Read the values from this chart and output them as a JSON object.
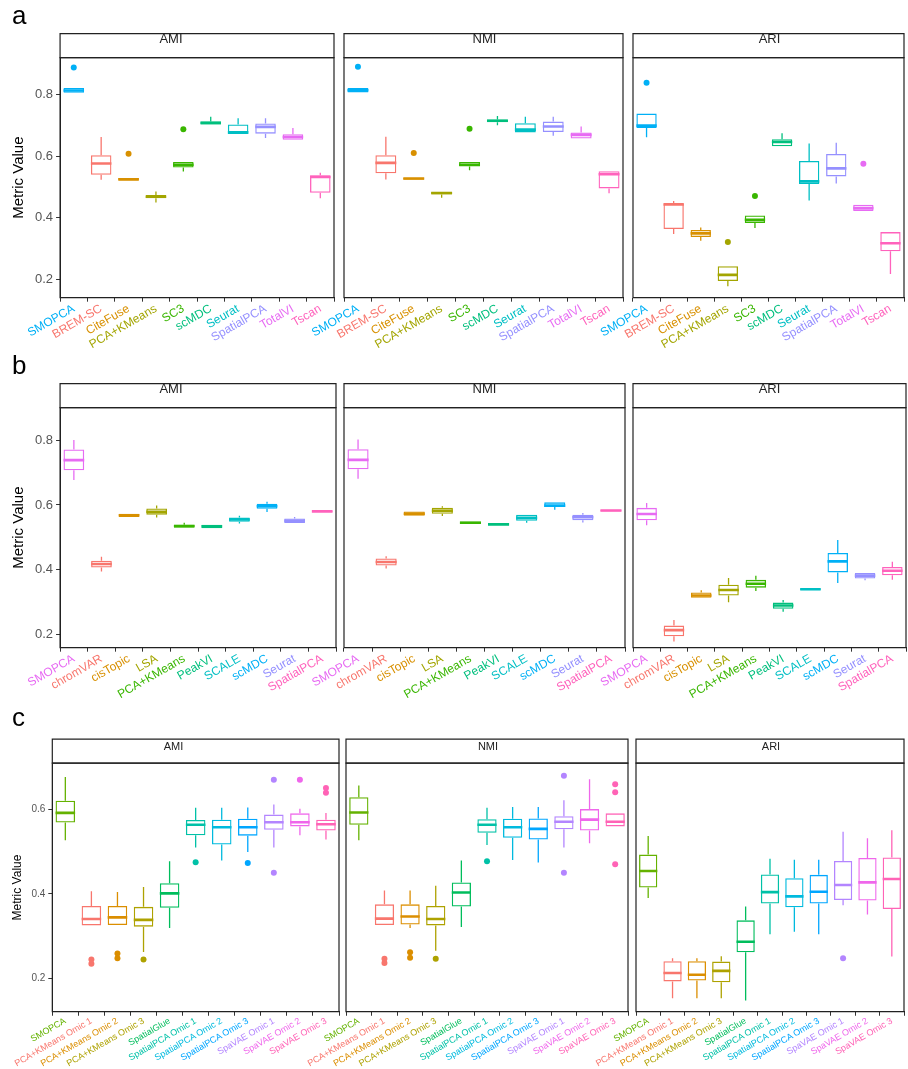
{
  "chart_data": [
    {
      "type": "box",
      "title": "AMI",
      "ylabel": "Metric Value",
      "annotations": [
        "a"
      ],
      "grid": false,
      "ylim": [
        0.14,
        0.92
      ],
      "yticks": [
        0.2,
        0.4,
        0.6,
        0.8
      ],
      "categories": [
        "SMOPCA",
        "BREM-SC",
        "CiteFuse",
        "PCA+KMeans",
        "SC3",
        "scMDC",
        "Seurat",
        "SpatialPCA",
        "TotalVI",
        "Tscan"
      ],
      "colors": [
        "#00b0f6",
        "#f8766d",
        "#d89000",
        "#a3a500",
        "#39b600",
        "#00bf7d",
        "#00bfc4",
        "#9590ff",
        "#e76bf3",
        "#ff62bc"
      ],
      "boxes": [
        {
          "low": 0.806,
          "q1": 0.806,
          "median": 0.813,
          "q3": 0.821,
          "high": 0.821,
          "outliers": [
            0.888
          ]
        },
        {
          "low": 0.523,
          "q1": 0.539,
          "median": 0.576,
          "q3": 0.603,
          "high": 0.662
        },
        {
          "low": 0.52,
          "q1": 0.52,
          "median": 0.525,
          "q3": 0.529,
          "high": 0.529,
          "outliers": [
            0.608
          ]
        },
        {
          "low": 0.449,
          "q1": 0.463,
          "median": 0.468,
          "q3": 0.474,
          "high": 0.485
        },
        {
          "low": 0.55,
          "q1": 0.563,
          "median": 0.572,
          "q3": 0.581,
          "high": 0.581,
          "outliers": [
            0.687
          ]
        },
        {
          "low": 0.703,
          "q1": 0.703,
          "median": 0.708,
          "q3": 0.712,
          "high": 0.728
        },
        {
          "low": 0.672,
          "q1": 0.672,
          "median": 0.677,
          "q3": 0.703,
          "high": 0.723
        },
        {
          "low": 0.659,
          "q1": 0.673,
          "median": 0.695,
          "q3": 0.706,
          "high": 0.723
        },
        {
          "low": 0.653,
          "q1": 0.653,
          "median": 0.662,
          "q3": 0.671,
          "high": 0.691
        },
        {
          "low": 0.463,
          "q1": 0.481,
          "median": 0.532,
          "q3": 0.538,
          "high": 0.546
        }
      ]
    },
    {
      "type": "box",
      "title": "NMI",
      "tick_labels": "x",
      "grid": false,
      "ylim": [
        0.14,
        0.92
      ],
      "yticks": [
        0.2,
        0.4,
        0.6,
        0.8
      ],
      "categories": [
        "SMOPCA",
        "BREM-SC",
        "CiteFuse",
        "PCA+KMeans",
        "SC3",
        "scMDC",
        "Seurat",
        "SpatialPCA",
        "TotalVI",
        "Tscan"
      ],
      "colors": [
        "#00b0f6",
        "#f8766d",
        "#d89000",
        "#a3a500",
        "#39b600",
        "#00bf7d",
        "#00bfc4",
        "#9590ff",
        "#e76bf3",
        "#ff62bc"
      ],
      "boxes": [
        {
          "low": 0.807,
          "q1": 0.807,
          "median": 0.814,
          "q3": 0.821,
          "high": 0.821,
          "outliers": [
            0.89
          ]
        },
        {
          "low": 0.524,
          "q1": 0.544,
          "median": 0.578,
          "q3": 0.603,
          "high": 0.663
        },
        {
          "low": 0.523,
          "q1": 0.523,
          "median": 0.527,
          "q3": 0.53,
          "high": 0.53,
          "outliers": [
            0.61
          ]
        },
        {
          "low": 0.465,
          "q1": 0.475,
          "median": 0.48,
          "q3": 0.483,
          "high": 0.483
        },
        {
          "low": 0.554,
          "q1": 0.566,
          "median": 0.572,
          "q3": 0.581,
          "high": 0.581,
          "outliers": [
            0.689
          ]
        },
        {
          "low": 0.7,
          "q1": 0.71,
          "median": 0.715,
          "q3": 0.719,
          "high": 0.73
        },
        {
          "low": 0.677,
          "q1": 0.677,
          "median": 0.686,
          "q3": 0.707,
          "high": 0.728
        },
        {
          "low": 0.666,
          "q1": 0.678,
          "median": 0.696,
          "q3": 0.712,
          "high": 0.728
        },
        {
          "low": 0.657,
          "q1": 0.657,
          "median": 0.669,
          "q3": 0.677,
          "high": 0.696
        },
        {
          "low": 0.479,
          "q1": 0.495,
          "median": 0.541,
          "q3": 0.551,
          "high": 0.551
        }
      ]
    },
    {
      "type": "box",
      "title": "ARI",
      "tick_labels": "x",
      "grid": false,
      "ylim": [
        0.14,
        0.92
      ],
      "yticks": [
        0.2,
        0.4,
        0.6,
        0.8
      ],
      "categories": [
        "SMOPCA",
        "BREM-SC",
        "CiteFuse",
        "PCA+KMeans",
        "SC3",
        "scMDC",
        "Seurat",
        "SpatialPCA",
        "TotalVI",
        "Tscan"
      ],
      "colors": [
        "#00b0f6",
        "#f8766d",
        "#d89000",
        "#a3a500",
        "#39b600",
        "#00bf7d",
        "#00bfc4",
        "#9590ff",
        "#e76bf3",
        "#ff62bc"
      ],
      "boxes": [
        {
          "low": 0.661,
          "q1": 0.691,
          "median": 0.699,
          "q3": 0.738,
          "high": 0.738,
          "outliers": [
            0.838
          ]
        },
        {
          "low": 0.347,
          "q1": 0.363,
          "median": 0.443,
          "q3": 0.445,
          "high": 0.454
        },
        {
          "low": 0.325,
          "q1": 0.337,
          "median": 0.349,
          "q3": 0.36,
          "high": 0.368
        },
        {
          "low": 0.177,
          "q1": 0.194,
          "median": 0.214,
          "q3": 0.242,
          "high": 0.242,
          "outliers": [
            0.321
          ]
        },
        {
          "low": 0.366,
          "q1": 0.383,
          "median": 0.393,
          "q3": 0.407,
          "high": 0.407,
          "outliers": [
            0.47
          ]
        },
        {
          "low": 0.632,
          "q1": 0.632,
          "median": 0.646,
          "q3": 0.655,
          "high": 0.674
        },
        {
          "low": 0.456,
          "q1": 0.509,
          "median": 0.518,
          "q3": 0.584,
          "high": 0.641
        },
        {
          "low": 0.511,
          "q1": 0.534,
          "median": 0.56,
          "q3": 0.607,
          "high": 0.643
        },
        {
          "low": 0.422,
          "q1": 0.422,
          "median": 0.431,
          "q3": 0.442,
          "high": 0.442,
          "outliers": [
            0.575
          ]
        },
        {
          "low": 0.217,
          "q1": 0.291,
          "median": 0.317,
          "q3": 0.353,
          "high": 0.353
        }
      ]
    },
    {
      "type": "box",
      "title": "AMI",
      "ylabel": "Metric Value",
      "annotations": [
        "b"
      ],
      "grid": false,
      "ylim": [
        0.16,
        0.9
      ],
      "yticks": [
        0.2,
        0.4,
        0.6,
        0.8
      ],
      "categories": [
        "SMOPCA",
        "chromVAR",
        "cisTopic",
        "LSA",
        "PCA+KMeans",
        "PeakVI",
        "SCALE",
        "scMDC",
        "Seurat",
        "SpatialPCA"
      ],
      "colors": [
        "#e76bf3",
        "#f8766d",
        "#d89000",
        "#a3a500",
        "#39b600",
        "#00bf7d",
        "#00bfc4",
        "#00b0f6",
        "#9590ff",
        "#ff62bc"
      ],
      "boxes": [
        {
          "low": 0.677,
          "q1": 0.707,
          "median": 0.738,
          "q3": 0.771,
          "high": 0.8
        },
        {
          "low": 0.395,
          "q1": 0.407,
          "median": 0.418,
          "q3": 0.428,
          "high": 0.44
        },
        {
          "low": 0.563,
          "q1": 0.563,
          "median": 0.568,
          "q3": 0.573,
          "high": 0.573
        },
        {
          "low": 0.561,
          "q1": 0.57,
          "median": 0.579,
          "q3": 0.589,
          "high": 0.598
        },
        {
          "low": 0.53,
          "q1": 0.53,
          "median": 0.535,
          "q3": 0.539,
          "high": 0.545
        },
        {
          "low": 0.528,
          "q1": 0.528,
          "median": 0.534,
          "q3": 0.539,
          "high": 0.539
        },
        {
          "low": 0.543,
          "q1": 0.548,
          "median": 0.555,
          "q3": 0.561,
          "high": 0.567
        },
        {
          "low": 0.578,
          "q1": 0.588,
          "median": 0.596,
          "q3": 0.604,
          "high": 0.61
        },
        {
          "low": 0.544,
          "q1": 0.544,
          "median": 0.551,
          "q3": 0.558,
          "high": 0.563
        },
        {
          "low": 0.578,
          "q1": 0.578,
          "median": 0.58,
          "q3": 0.582,
          "high": 0.582
        }
      ]
    },
    {
      "type": "box",
      "title": "NMI",
      "tick_labels": "x",
      "grid": false,
      "ylim": [
        0.16,
        0.9
      ],
      "yticks": [
        0.2,
        0.4,
        0.6,
        0.8
      ],
      "categories": [
        "SMOPCA",
        "chromVAR",
        "cisTopic",
        "LSA",
        "PCA+KMeans",
        "PeakVI",
        "SCALE",
        "scMDC",
        "Seurat",
        "SpatialPCA"
      ],
      "colors": [
        "#e76bf3",
        "#f8766d",
        "#d89000",
        "#a3a500",
        "#39b600",
        "#00bf7d",
        "#00bfc4",
        "#00b0f6",
        "#9590ff",
        "#ff62bc"
      ],
      "boxes": [
        {
          "low": 0.681,
          "q1": 0.71,
          "median": 0.739,
          "q3": 0.772,
          "high": 0.802
        },
        {
          "low": 0.404,
          "q1": 0.413,
          "median": 0.424,
          "q3": 0.435,
          "high": 0.442
        },
        {
          "low": 0.567,
          "q1": 0.567,
          "median": 0.573,
          "q3": 0.58,
          "high": 0.58
        },
        {
          "low": 0.566,
          "q1": 0.573,
          "median": 0.582,
          "q3": 0.591,
          "high": 0.596
        },
        {
          "low": 0.541,
          "q1": 0.541,
          "median": 0.545,
          "q3": 0.549,
          "high": 0.549
        },
        {
          "low": 0.537,
          "q1": 0.537,
          "median": 0.54,
          "q3": 0.544,
          "high": 0.544
        },
        {
          "low": 0.545,
          "q1": 0.551,
          "median": 0.56,
          "q3": 0.57,
          "high": 0.57
        },
        {
          "low": 0.585,
          "q1": 0.594,
          "median": 0.598,
          "q3": 0.608,
          "high": 0.608
        },
        {
          "low": 0.546,
          "q1": 0.553,
          "median": 0.562,
          "q3": 0.57,
          "high": 0.575
        },
        {
          "low": 0.58,
          "q1": 0.58,
          "median": 0.583,
          "q3": 0.585,
          "high": 0.585
        }
      ]
    },
    {
      "type": "box",
      "title": "ARI",
      "tick_labels": "x",
      "grid": false,
      "ylim": [
        0.16,
        0.9
      ],
      "yticks": [
        0.2,
        0.4,
        0.6,
        0.8
      ],
      "categories": [
        "SMOPCA",
        "chromVAR",
        "cisTopic",
        "LSA",
        "PCA+KMeans",
        "PeakVI",
        "SCALE",
        "scMDC",
        "Seurat",
        "SpatialPCA"
      ],
      "colors": [
        "#e76bf3",
        "#f8766d",
        "#d89000",
        "#a3a500",
        "#39b600",
        "#00bf7d",
        "#00bfc4",
        "#00b0f6",
        "#9590ff",
        "#ff62bc"
      ],
      "boxes": [
        {
          "low": 0.537,
          "q1": 0.553,
          "median": 0.572,
          "q3": 0.591,
          "high": 0.606
        },
        {
          "low": 0.179,
          "q1": 0.195,
          "median": 0.214,
          "q3": 0.228,
          "high": 0.245
        },
        {
          "low": 0.314,
          "q1": 0.314,
          "median": 0.321,
          "q3": 0.33,
          "high": 0.337
        },
        {
          "low": 0.3,
          "q1": 0.321,
          "median": 0.338,
          "q3": 0.354,
          "high": 0.375
        },
        {
          "low": 0.335,
          "q1": 0.345,
          "median": 0.357,
          "q3": 0.369,
          "high": 0.382
        },
        {
          "low": 0.271,
          "q1": 0.28,
          "median": 0.29,
          "q3": 0.299,
          "high": 0.307
        },
        {
          "low": 0.337,
          "q1": 0.337,
          "median": 0.34,
          "q3": 0.343,
          "high": 0.343
        },
        {
          "low": 0.359,
          "q1": 0.392,
          "median": 0.426,
          "q3": 0.452,
          "high": 0.492
        },
        {
          "low": 0.368,
          "q1": 0.373,
          "median": 0.382,
          "q3": 0.39,
          "high": 0.39
        },
        {
          "low": 0.369,
          "q1": 0.383,
          "median": 0.397,
          "q3": 0.409,
          "high": 0.425
        }
      ]
    },
    {
      "type": "box",
      "title": "AMI",
      "ylabel": "Metric Value",
      "annotations": [
        "c"
      ],
      "grid": false,
      "ylim": [
        0.12,
        0.71
      ],
      "yticks": [
        0.2,
        0.4,
        0.6
      ],
      "categories": [
        "SMOPCA",
        "PCA+KMeans Omic 1",
        "PCA+KMeans Omic 2",
        "PCA+KMeans Omic 3",
        "SpatialGlue",
        "SpatialPCA Omic 1",
        "SpatialPCA Omic 2",
        "SpatialPCA Omic 3",
        "SpaVAE Omic 1",
        "SpaVAE Omic 2",
        "SpaVAE Omic 3"
      ],
      "colors": [
        "#64b200",
        "#f8766d",
        "#db8e00",
        "#aea200",
        "#00bd5c",
        "#00c1a7",
        "#00bade",
        "#00a6ff",
        "#b385ff",
        "#ef67eb",
        "#ff63b6"
      ],
      "boxes": [
        {
          "low": 0.527,
          "q1": 0.569,
          "median": 0.592,
          "q3": 0.621,
          "high": 0.677
        },
        {
          "low": 0.325,
          "q1": 0.325,
          "median": 0.34,
          "q3": 0.371,
          "high": 0.406,
          "outliers": [
            0.244,
            0.234
          ]
        },
        {
          "low": 0.326,
          "q1": 0.326,
          "median": 0.344,
          "q3": 0.371,
          "high": 0.404,
          "outliers": [
            0.258,
            0.247
          ]
        },
        {
          "low": 0.262,
          "q1": 0.322,
          "median": 0.338,
          "q3": 0.369,
          "high": 0.416,
          "outliers": [
            0.244
          ]
        },
        {
          "low": 0.319,
          "q1": 0.367,
          "median": 0.401,
          "q3": 0.425,
          "high": 0.477
        },
        {
          "low": 0.51,
          "q1": 0.539,
          "median": 0.564,
          "q3": 0.575,
          "high": 0.604,
          "outliers": [
            0.475
          ]
        },
        {
          "low": 0.479,
          "q1": 0.517,
          "median": 0.558,
          "q3": 0.576,
          "high": 0.604
        },
        {
          "low": 0.499,
          "q1": 0.538,
          "median": 0.558,
          "q3": 0.578,
          "high": 0.605,
          "outliers": [
            0.473
          ]
        },
        {
          "low": 0.51,
          "q1": 0.552,
          "median": 0.57,
          "q3": 0.588,
          "high": 0.612,
          "outliers": [
            0.671,
            0.45
          ]
        },
        {
          "low": 0.539,
          "q1": 0.56,
          "median": 0.57,
          "q3": 0.591,
          "high": 0.602,
          "outliers": [
            0.671
          ]
        },
        {
          "low": 0.529,
          "q1": 0.55,
          "median": 0.565,
          "q3": 0.576,
          "high": 0.592,
          "outliers": [
            0.651,
            0.64
          ]
        }
      ]
    },
    {
      "type": "box",
      "title": "NMI",
      "tick_labels": "x",
      "grid": false,
      "ylim": [
        0.12,
        0.71
      ],
      "yticks": [
        0.2,
        0.4,
        0.6
      ],
      "categories": [
        "SMOPCA",
        "PCA+KMeans Omic 1",
        "PCA+KMeans Omic 2",
        "PCA+KMeans Omic 3",
        "SpatialGlue",
        "SpatialPCA Omic 1",
        "SpatialPCA Omic 2",
        "SpatialPCA Omic 3",
        "SpaVAE Omic 1",
        "SpaVAE Omic 2",
        "SpaVAE Omic 3"
      ],
      "colors": [
        "#64b200",
        "#f8766d",
        "#db8e00",
        "#aea200",
        "#00bd5c",
        "#00c1a7",
        "#00bade",
        "#00a6ff",
        "#b385ff",
        "#ef67eb",
        "#ff63b6"
      ],
      "boxes": [
        {
          "low": 0.527,
          "q1": 0.564,
          "median": 0.593,
          "q3": 0.629,
          "high": 0.657
        },
        {
          "low": 0.326,
          "q1": 0.326,
          "median": 0.341,
          "q3": 0.375,
          "high": 0.408,
          "outliers": [
            0.246,
            0.236
          ]
        },
        {
          "low": 0.319,
          "q1": 0.327,
          "median": 0.346,
          "q3": 0.375,
          "high": 0.408,
          "outliers": [
            0.261,
            0.248
          ]
        },
        {
          "low": 0.265,
          "q1": 0.325,
          "median": 0.34,
          "q3": 0.371,
          "high": 0.419,
          "outliers": [
            0.246
          ]
        },
        {
          "low": 0.321,
          "q1": 0.37,
          "median": 0.403,
          "q3": 0.427,
          "high": 0.479
        },
        {
          "low": 0.516,
          "q1": 0.545,
          "median": 0.564,
          "q3": 0.577,
          "high": 0.604,
          "outliers": [
            0.477
          ]
        },
        {
          "low": 0.48,
          "q1": 0.533,
          "median": 0.558,
          "q3": 0.578,
          "high": 0.606
        },
        {
          "low": 0.474,
          "q1": 0.529,
          "median": 0.554,
          "q3": 0.579,
          "high": 0.606
        },
        {
          "low": 0.51,
          "q1": 0.553,
          "median": 0.571,
          "q3": 0.584,
          "high": 0.622,
          "outliers": [
            0.68,
            0.45
          ]
        },
        {
          "low": 0.52,
          "q1": 0.55,
          "median": 0.576,
          "q3": 0.601,
          "high": 0.672
        },
        {
          "low": 0.56,
          "q1": 0.56,
          "median": 0.571,
          "q3": 0.591,
          "high": 0.591,
          "outliers": [
            0.66,
            0.641,
            0.47
          ]
        }
      ]
    },
    {
      "type": "box",
      "title": "ARI",
      "tick_labels": "x",
      "grid": false,
      "ylim": [
        0.12,
        0.71
      ],
      "yticks": [
        0.2,
        0.4,
        0.6
      ],
      "categories": [
        "SMOPCA",
        "PCA+KMeans Omic 1",
        "PCA+KMeans Omic 2",
        "PCA+KMeans Omic 3",
        "SpatialGlue",
        "SpatialPCA Omic 1",
        "SpatialPCA Omic 2",
        "SpatialPCA Omic 3",
        "SpaVAE Omic 1",
        "SpaVAE Omic 2",
        "SpaVAE Omic 3"
      ],
      "colors": [
        "#64b200",
        "#f8766d",
        "#db8e00",
        "#aea200",
        "#00bd5c",
        "#00c1a7",
        "#00bade",
        "#00a6ff",
        "#b385ff",
        "#ef67eb",
        "#ff63b6"
      ],
      "boxes": [
        {
          "low": 0.39,
          "q1": 0.415,
          "median": 0.454,
          "q3": 0.493,
          "high": 0.537
        },
        {
          "low": 0.152,
          "q1": 0.192,
          "median": 0.212,
          "q3": 0.24,
          "high": 0.247
        },
        {
          "low": 0.152,
          "q1": 0.194,
          "median": 0.208,
          "q3": 0.24,
          "high": 0.247
        },
        {
          "low": 0.152,
          "q1": 0.19,
          "median": 0.217,
          "q3": 0.239,
          "high": 0.252
        },
        {
          "low": 0.147,
          "q1": 0.261,
          "median": 0.286,
          "q3": 0.337,
          "high": 0.37
        },
        {
          "low": 0.304,
          "q1": 0.377,
          "median": 0.404,
          "q3": 0.446,
          "high": 0.483
        },
        {
          "low": 0.31,
          "q1": 0.368,
          "median": 0.394,
          "q3": 0.437,
          "high": 0.481
        },
        {
          "low": 0.304,
          "q1": 0.377,
          "median": 0.405,
          "q3": 0.445,
          "high": 0.481
        },
        {
          "low": 0.373,
          "q1": 0.385,
          "median": 0.421,
          "q3": 0.478,
          "high": 0.547,
          "outliers": [
            0.247
          ]
        },
        {
          "low": 0.351,
          "q1": 0.384,
          "median": 0.427,
          "q3": 0.485,
          "high": 0.532
        },
        {
          "low": 0.251,
          "q1": 0.364,
          "median": 0.435,
          "q3": 0.486,
          "high": 0.551
        }
      ]
    }
  ]
}
